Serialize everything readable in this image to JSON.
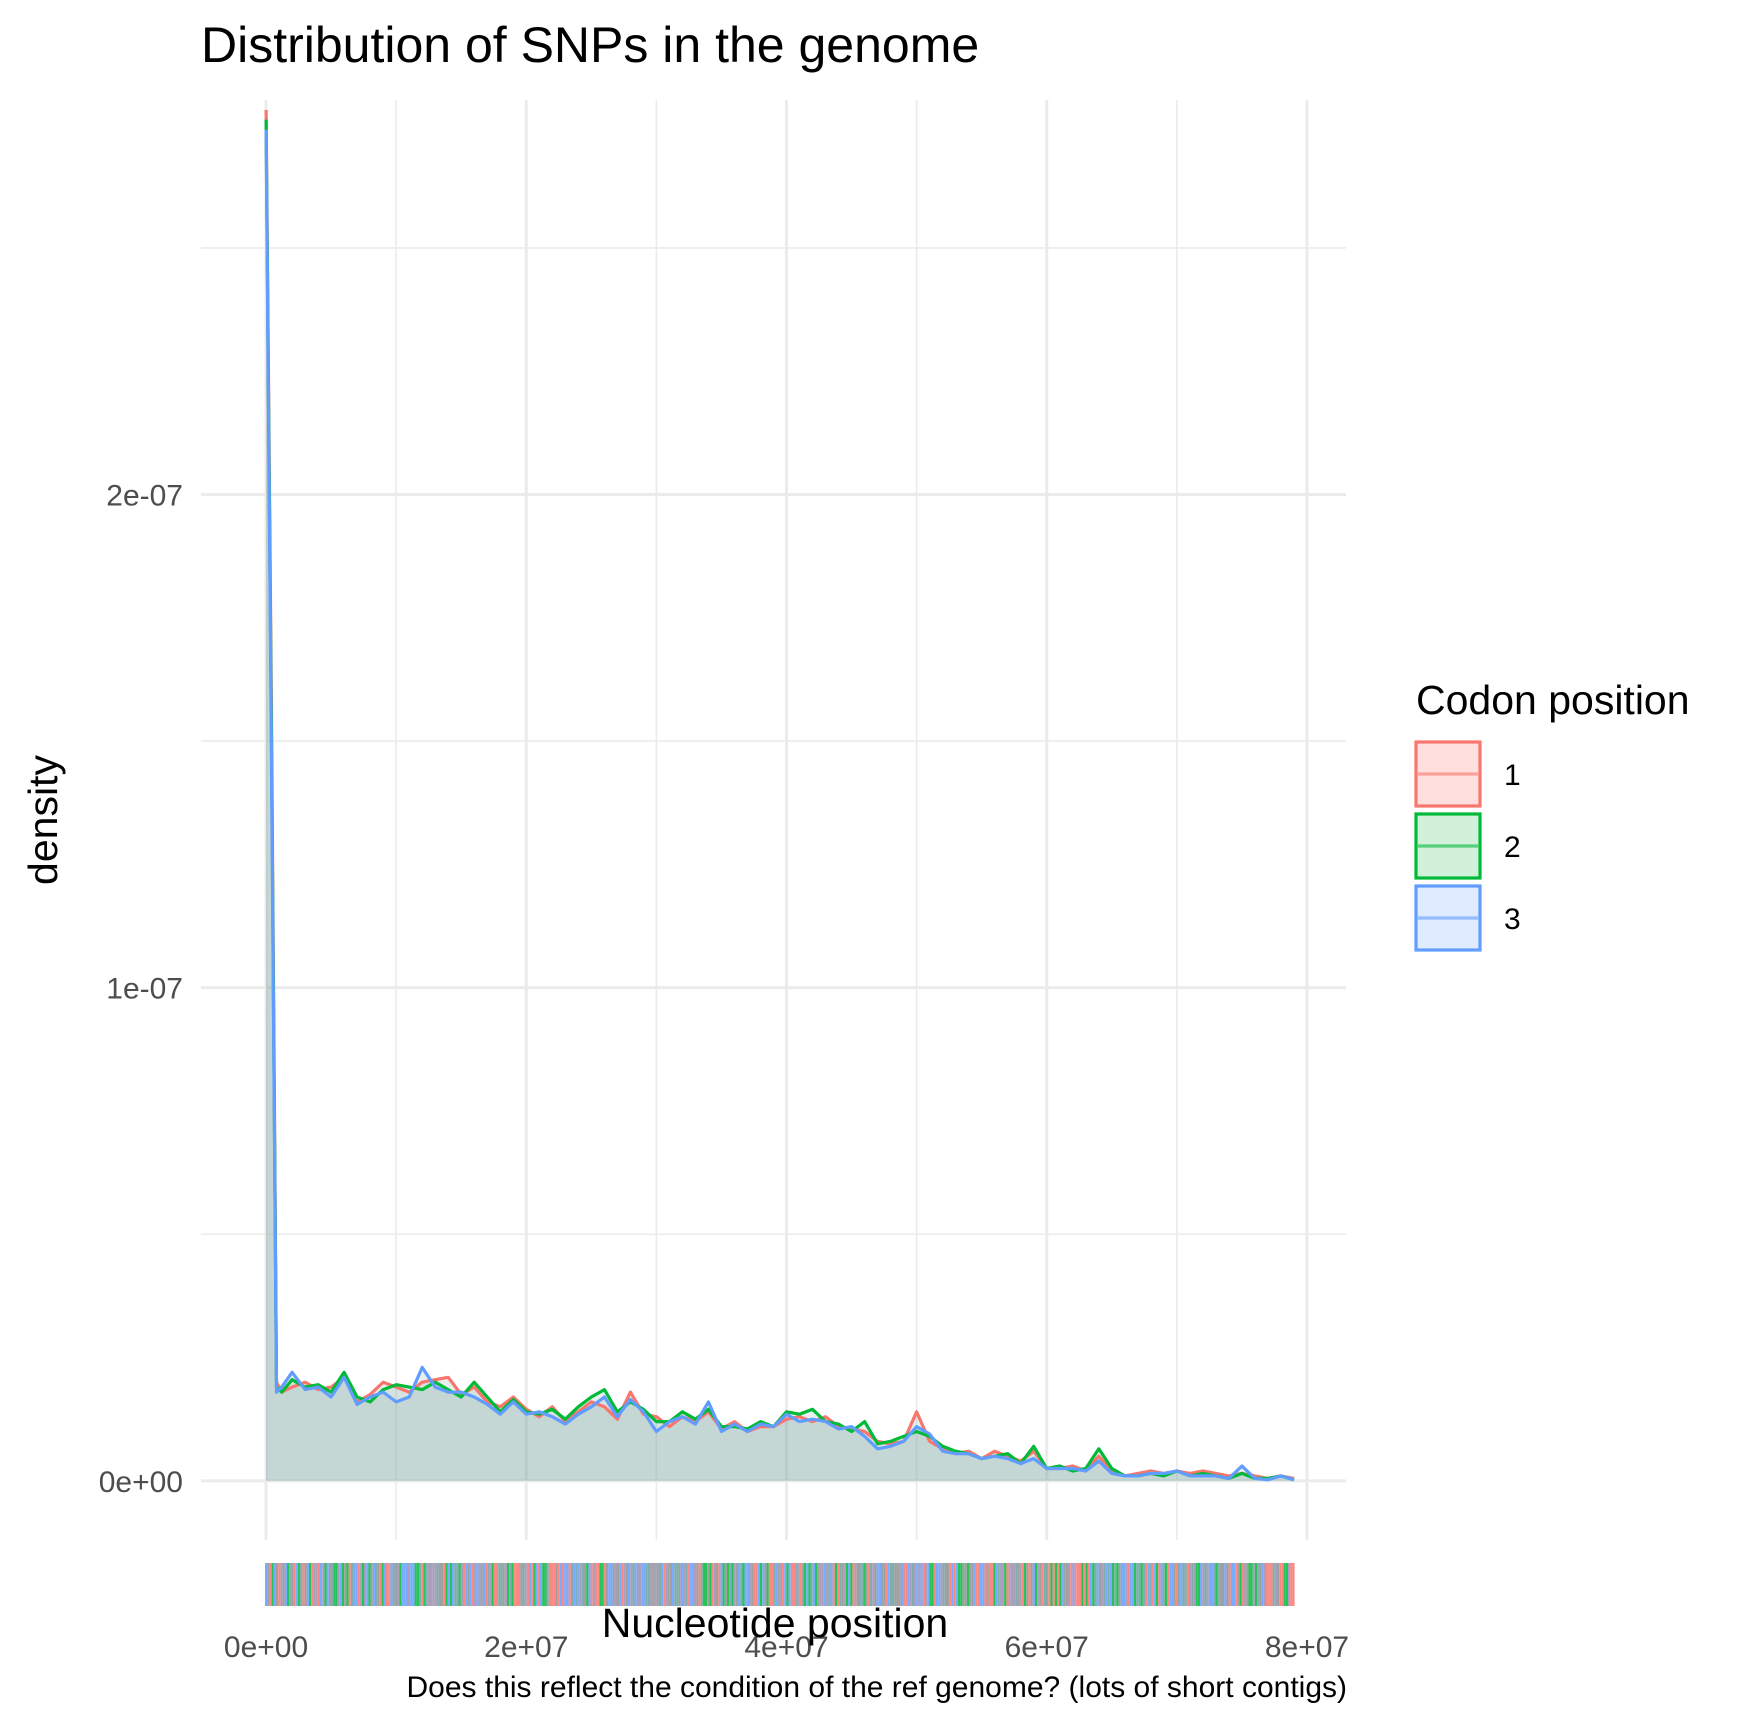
{
  "chart_data": {
    "type": "area",
    "title": "Distribution of SNPs in the genome",
    "xlabel": "Nucleotide position",
    "ylabel": "density",
    "caption": "Does this reflect the condition of the ref genome? (lots of short contigs)",
    "xlim": [
      -5000000,
      83000000
    ],
    "ylim": [
      -1.2e-08,
      2.8e-07
    ],
    "x_ticks": [
      0,
      20000000,
      40000000,
      60000000,
      80000000
    ],
    "x_tick_labels": [
      "0e+00",
      "2e+07",
      "4e+07",
      "6e+07",
      "8e+07"
    ],
    "y_ticks": [
      0,
      1e-07,
      2e-07
    ],
    "y_tick_labels": [
      "0e+00",
      "1e-07",
      "2e-07"
    ],
    "grid": true,
    "legend": {
      "title": "Codon position",
      "placement": "right",
      "entries": [
        "1",
        "2",
        "3"
      ]
    },
    "series": [
      {
        "name": "1",
        "color": "#F8766D",
        "fill": "#FFDFDD",
        "x": [
          0,
          400000,
          800000,
          1200000,
          2000000,
          3000000,
          4000000,
          5000000,
          6000000,
          7000000,
          8000000,
          9000000,
          10000000,
          11000000,
          12000000,
          13000000,
          14000000,
          15000000,
          16000000,
          17000000,
          18000000,
          19000000,
          20000000,
          21000000,
          22000000,
          23000000,
          24000000,
          25000000,
          26000000,
          27000000,
          28000000,
          29000000,
          30000000,
          31000000,
          32000000,
          33000000,
          34000000,
          35000000,
          36000000,
          37000000,
          38000000,
          39000000,
          40000000,
          41000000,
          42000000,
          43000000,
          44000000,
          45000000,
          46000000,
          47000000,
          48000000,
          49000000,
          50000000,
          51000000,
          52000000,
          53000000,
          54000000,
          55000000,
          56000000,
          57000000,
          58000000,
          59000000,
          60000000,
          61000000,
          62000000,
          63000000,
          64000000,
          65000000,
          66000000,
          67000000,
          68000000,
          69000000,
          70000000,
          71000000,
          72000000,
          73000000,
          74000000,
          75000000,
          76000000,
          77000000,
          78000000,
          79000000
        ],
        "y": [
          2.78e-07,
          1.6e-07,
          2e-08,
          1.8e-08,
          1.9e-08,
          2e-08,
          1.85e-08,
          1.9e-08,
          2.1e-08,
          1.6e-08,
          1.75e-08,
          2e-08,
          1.9e-08,
          1.8e-08,
          2e-08,
          2.05e-08,
          2.1e-08,
          1.75e-08,
          1.9e-08,
          1.6e-08,
          1.5e-08,
          1.7e-08,
          1.45e-08,
          1.3e-08,
          1.5e-08,
          1.2e-08,
          1.4e-08,
          1.6e-08,
          1.5e-08,
          1.25e-08,
          1.8e-08,
          1.35e-08,
          1.3e-08,
          1.1e-08,
          1.3e-08,
          1.2e-08,
          1.4e-08,
          1.05e-08,
          1.2e-08,
          1e-08,
          1.1e-08,
          1.1e-08,
          1.25e-08,
          1.3e-08,
          1.2e-08,
          1.3e-08,
          1.1e-08,
          1.05e-08,
          1e-08,
          8e-09,
          7.5e-09,
          8e-09,
          1.4e-08,
          8e-09,
          6.5e-09,
          5.5e-09,
          6e-09,
          4.5e-09,
          6e-09,
          5e-09,
          4e-09,
          6e-09,
          2.5e-09,
          2.5e-09,
          3e-09,
          2e-09,
          5e-09,
          2e-09,
          1e-09,
          1.5e-09,
          2e-09,
          1.5e-09,
          2e-09,
          1.5e-09,
          2e-09,
          1.5e-09,
          1e-09,
          1.5e-09,
          1e-09,
          5e-10,
          1e-09,
          5e-10
        ]
      },
      {
        "name": "2",
        "color": "#00BA38",
        "fill": "#D2F1DB",
        "x": [
          0,
          400000,
          800000,
          1200000,
          2000000,
          3000000,
          4000000,
          5000000,
          6000000,
          7000000,
          8000000,
          9000000,
          10000000,
          11000000,
          12000000,
          13000000,
          14000000,
          15000000,
          16000000,
          17000000,
          18000000,
          19000000,
          20000000,
          21000000,
          22000000,
          23000000,
          24000000,
          25000000,
          26000000,
          27000000,
          28000000,
          29000000,
          30000000,
          31000000,
          32000000,
          33000000,
          34000000,
          35000000,
          36000000,
          37000000,
          38000000,
          39000000,
          40000000,
          41000000,
          42000000,
          43000000,
          44000000,
          45000000,
          46000000,
          47000000,
          48000000,
          49000000,
          50000000,
          51000000,
          52000000,
          53000000,
          54000000,
          55000000,
          56000000,
          57000000,
          58000000,
          59000000,
          60000000,
          61000000,
          62000000,
          63000000,
          64000000,
          65000000,
          66000000,
          67000000,
          68000000,
          69000000,
          70000000,
          71000000,
          72000000,
          73000000,
          74000000,
          75000000,
          76000000,
          77000000,
          78000000,
          79000000
        ],
        "y": [
          2.76e-07,
          1.55e-07,
          1.9e-08,
          1.8e-08,
          2.05e-08,
          1.9e-08,
          1.95e-08,
          1.8e-08,
          2.2e-08,
          1.7e-08,
          1.6e-08,
          1.85e-08,
          1.95e-08,
          1.9e-08,
          1.85e-08,
          2e-08,
          1.85e-08,
          1.7e-08,
          2e-08,
          1.7e-08,
          1.4e-08,
          1.65e-08,
          1.4e-08,
          1.35e-08,
          1.45e-08,
          1.25e-08,
          1.5e-08,
          1.7e-08,
          1.85e-08,
          1.4e-08,
          1.6e-08,
          1.45e-08,
          1.2e-08,
          1.2e-08,
          1.4e-08,
          1.25e-08,
          1.45e-08,
          1.1e-08,
          1.1e-08,
          1.05e-08,
          1.2e-08,
          1.1e-08,
          1.4e-08,
          1.35e-08,
          1.45e-08,
          1.2e-08,
          1.15e-08,
          1e-08,
          1.2e-08,
          7.5e-09,
          8e-09,
          9e-09,
          1e-08,
          9e-09,
          7e-09,
          6e-09,
          5.5e-09,
          4.5e-09,
          5e-09,
          5.5e-09,
          3.5e-09,
          7e-09,
          2.5e-09,
          3e-09,
          2e-09,
          2.5e-09,
          6.5e-09,
          2.5e-09,
          1e-09,
          1e-09,
          1.5e-09,
          1e-09,
          2e-09,
          1e-09,
          1.5e-09,
          1e-09,
          5e-10,
          1.5e-09,
          5e-10,
          5e-10,
          1e-09,
          2e-10
        ]
      },
      {
        "name": "3",
        "color": "#619CFF",
        "fill": "#DFEBFF",
        "x": [
          0,
          400000,
          800000,
          1200000,
          2000000,
          3000000,
          4000000,
          5000000,
          6000000,
          7000000,
          8000000,
          9000000,
          10000000,
          11000000,
          12000000,
          13000000,
          14000000,
          15000000,
          16000000,
          17000000,
          18000000,
          19000000,
          20000000,
          21000000,
          22000000,
          23000000,
          24000000,
          25000000,
          26000000,
          27000000,
          28000000,
          29000000,
          30000000,
          31000000,
          32000000,
          33000000,
          34000000,
          35000000,
          36000000,
          37000000,
          38000000,
          39000000,
          40000000,
          41000000,
          42000000,
          43000000,
          44000000,
          45000000,
          46000000,
          47000000,
          48000000,
          49000000,
          50000000,
          51000000,
          52000000,
          53000000,
          54000000,
          55000000,
          56000000,
          57000000,
          58000000,
          59000000,
          60000000,
          61000000,
          62000000,
          63000000,
          64000000,
          65000000,
          66000000,
          67000000,
          68000000,
          69000000,
          70000000,
          71000000,
          72000000,
          73000000,
          74000000,
          75000000,
          76000000,
          77000000,
          78000000,
          79000000
        ],
        "y": [
          2.74e-07,
          1.5e-07,
          1.8e-08,
          1.9e-08,
          2.2e-08,
          1.85e-08,
          1.9e-08,
          1.7e-08,
          2.1e-08,
          1.55e-08,
          1.7e-08,
          1.8e-08,
          1.6e-08,
          1.7e-08,
          2.3e-08,
          1.9e-08,
          1.8e-08,
          1.8e-08,
          1.7e-08,
          1.55e-08,
          1.35e-08,
          1.6e-08,
          1.35e-08,
          1.4e-08,
          1.3e-08,
          1.15e-08,
          1.35e-08,
          1.5e-08,
          1.7e-08,
          1.3e-08,
          1.65e-08,
          1.4e-08,
          1e-08,
          1.2e-08,
          1.3e-08,
          1.15e-08,
          1.6e-08,
          1e-08,
          1.15e-08,
          1e-08,
          1.15e-08,
          1.1e-08,
          1.35e-08,
          1.2e-08,
          1.25e-08,
          1.2e-08,
          1.05e-08,
          1.1e-08,
          9e-09,
          6.5e-09,
          7e-09,
          8e-09,
          1.1e-08,
          9.5e-09,
          6e-09,
          5.5e-09,
          5.5e-09,
          4.5e-09,
          5e-09,
          4.5e-09,
          3.5e-09,
          4.5e-09,
          2.5e-09,
          2.5e-09,
          2.5e-09,
          2e-09,
          4e-09,
          1.5e-09,
          1e-09,
          1e-09,
          1.5e-09,
          1.5e-09,
          2e-09,
          1e-09,
          1e-09,
          1e-09,
          5e-10,
          3e-09,
          5e-10,
          2e-10,
          1e-09,
          2e-10
        ]
      }
    ],
    "rug_xlim": [
      0,
      79000000
    ]
  }
}
